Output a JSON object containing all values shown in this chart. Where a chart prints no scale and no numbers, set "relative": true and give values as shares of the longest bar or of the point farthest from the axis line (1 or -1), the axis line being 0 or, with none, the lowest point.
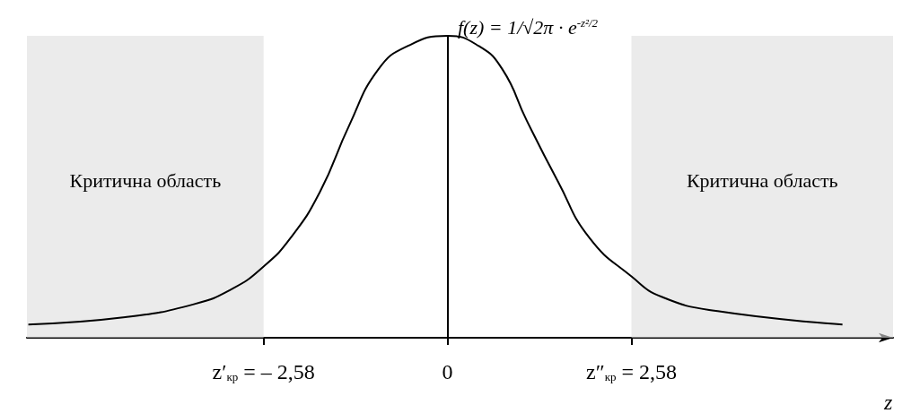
{
  "chart_data": {
    "type": "line",
    "relative": true,
    "ylabel": "f(z) = 1/√2π · e$^{-z²/2}$",
    "xlabel": "z",
    "x": [
      -5.88,
      -4.52,
      -3.56,
      -3.02,
      -2.58,
      -2.2,
      -1.79,
      -1.38,
      -0.97,
      -0.56,
      0,
      0.44,
      0.77,
      1.11,
      1.55,
      1.99,
      2.58,
      3.01,
      3.79,
      5.54
    ],
    "values": [
      0.044,
      0.068,
      0.111,
      0.162,
      0.236,
      0.331,
      0.483,
      0.703,
      0.889,
      0.966,
      1,
      0.966,
      0.889,
      0.72,
      0.517,
      0.331,
      0.203,
      0.135,
      0.088,
      0.044
    ],
    "color": "#000000",
    "xlim": [
      -5.9,
      6.25
    ],
    "xticks": [
      {
        "value": -2.58,
        "label": "z′$_{кр}$ = – 2,58"
      },
      0,
      {
        "value": 2.58,
        "label": "z″$_{кр}$ = 2,58"
      }
    ],
    "bands": [
      {
        "axis": "x",
        "from": -5.9,
        "to": -2.58,
        "label": "Критична область",
        "color": "#dddddd"
      },
      {
        "axis": "x",
        "from": 2.58,
        "to": 6.25,
        "label": "Критична область",
        "color": "#dddddd"
      }
    ],
    "marker": "none",
    "line_style": "solid"
  }
}
